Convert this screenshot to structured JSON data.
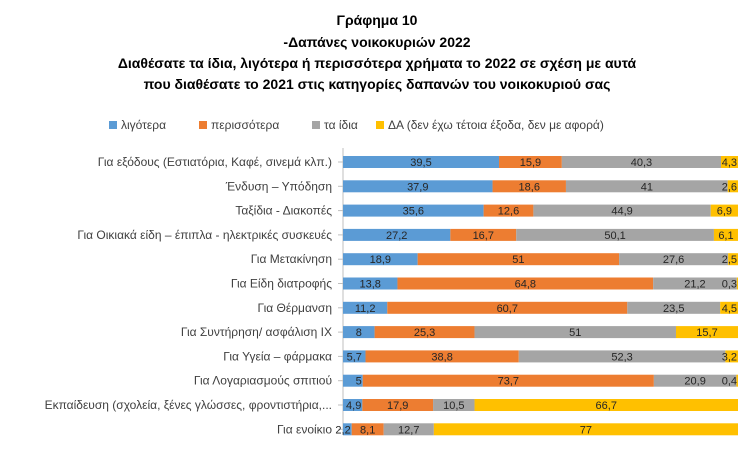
{
  "chart_data": {
    "type": "bar",
    "orientation": "horizontal",
    "stacked": "percent",
    "title_lines": [
      "Γράφημα 10",
      "-Δαπάνες νοικοκυριών 2022",
      "Διαθέσατε τα ίδια, λιγότερα ή περισσότερα χρήματα το 2022 σε σχέση με αυτά",
      "που διαθέσατε το 2021 στις κατηγορίες δαπανών του νοικοκυριού σας"
    ],
    "legend_position": "top",
    "grid": false,
    "xlim": [
      0,
      100
    ],
    "categories": [
      "Για εξόδους (Εστιατόρια, Καφέ, σινεμά κλπ.)",
      "Ένδυση – Υπόδηση",
      "Ταξίδια - Διακοπές",
      "Για Οικιακά είδη – έπιπλα - ηλεκτρικές συσκευές",
      "Για Μετακίνηση",
      "Για Είδη διατροφής",
      "Για Θέρμανση",
      "Για Συντήρηση/ ασφάλιση ΙΧ",
      "Για Υγεία – φάρμακα",
      "Για Λογαριασμούς σπιτιού",
      "Εκπαίδευση (σχολεία, ξένες γλώσσες, φροντιστήρια,...",
      "Για ενοίκιο"
    ],
    "series": [
      {
        "name": "λιγότερα",
        "color": "#5b9bd5",
        "values": [
          39.5,
          37.9,
          35.6,
          27.2,
          18.9,
          13.8,
          11.2,
          8,
          5.7,
          5,
          4.9,
          2.2
        ],
        "labels": [
          "39,5",
          "37,9",
          "35,6",
          "27,2",
          "18,9",
          "13,8",
          "11,2",
          "8",
          "5,7",
          "5",
          "4,9",
          "2,2"
        ]
      },
      {
        "name": "περισσότερα",
        "color": "#ed7d31",
        "values": [
          15.9,
          18.6,
          12.6,
          16.7,
          51,
          64.8,
          60.7,
          25.3,
          38.8,
          73.7,
          17.9,
          8.1
        ],
        "labels": [
          "15,9",
          "18,6",
          "12,6",
          "16,7",
          "51",
          "64,8",
          "60,7",
          "25,3",
          "38,8",
          "73,7",
          "17,9",
          "8,1"
        ]
      },
      {
        "name": "τα ίδια",
        "color": "#a5a5a5",
        "values": [
          40.3,
          41,
          44.9,
          50.1,
          27.6,
          21.2,
          23.5,
          51,
          52.3,
          20.9,
          10.5,
          12.7
        ],
        "labels": [
          "40,3",
          "41",
          "44,9",
          "50,1",
          "27,6",
          "21,2",
          "23,5",
          "51",
          "52,3",
          "20,9",
          "10,5",
          "12,7"
        ]
      },
      {
        "name": "ΔΑ (δεν έχω τέτοια έξοδα, δεν με αφορά)",
        "color": "#ffc000",
        "values": [
          4.3,
          2.6,
          6.9,
          6.1,
          2.5,
          0.3,
          4.5,
          15.7,
          3.2,
          0.4,
          66.7,
          77
        ],
        "labels": [
          "4,3",
          "2,6",
          "6,9",
          "6,1",
          "2,5",
          "0,3",
          "4,5",
          "15,7",
          "3,2",
          "0,4",
          "66,7",
          "77"
        ]
      }
    ]
  }
}
